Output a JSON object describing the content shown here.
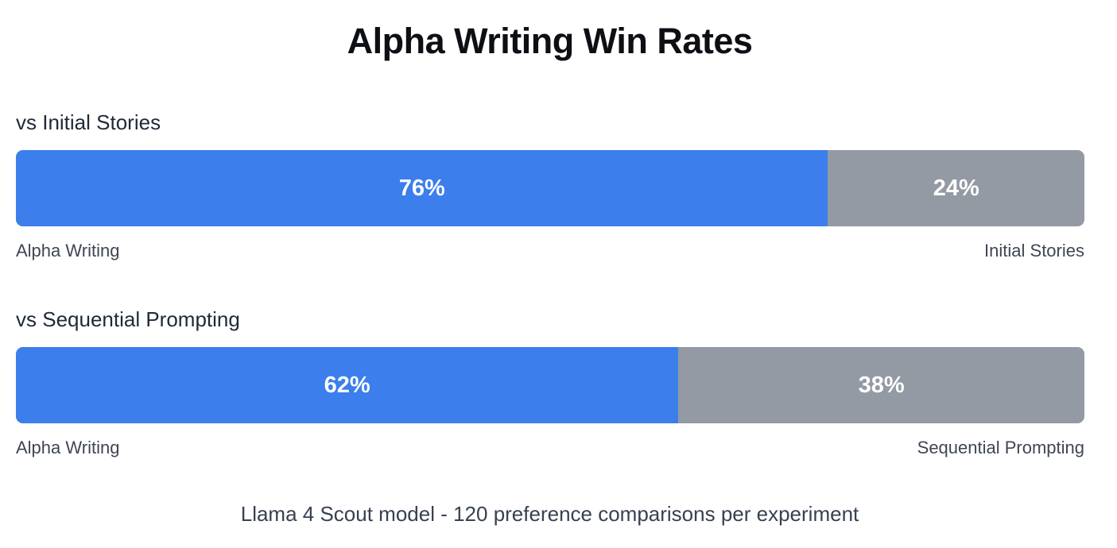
{
  "chart_data": {
    "type": "bar",
    "title": "Alpha Writing Win Rates",
    "footnote": "Llama 4 Scout model - 120 preference comparisons per experiment",
    "colors": {
      "alpha": "#3b7eec",
      "baseline": "#949aa4"
    },
    "groups": [
      {
        "title": "vs Initial Stories",
        "left_label": "Alpha Writing",
        "right_label": "Initial Stories",
        "values": [
          76,
          24
        ],
        "value_labels": [
          "76%",
          "24%"
        ]
      },
      {
        "title": "vs Sequential Prompting",
        "left_label": "Alpha Writing",
        "right_label": "Sequential Prompting",
        "values": [
          62,
          38
        ],
        "value_labels": [
          "62%",
          "38%"
        ]
      }
    ]
  }
}
